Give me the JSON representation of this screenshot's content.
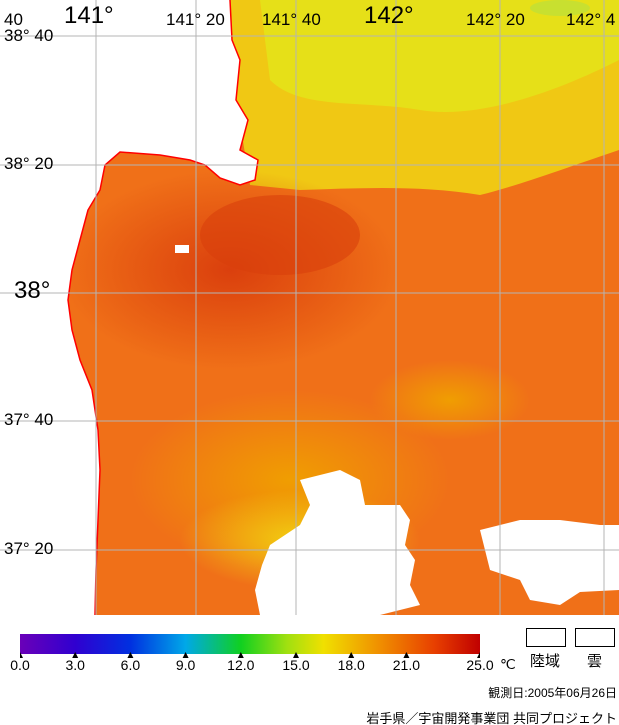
{
  "map": {
    "lon_labels": [
      {
        "text": "40",
        "major": false
      },
      {
        "text": "141°",
        "major": true
      },
      {
        "text": "141° 20",
        "major": false
      },
      {
        "text": "141° 40",
        "major": false
      },
      {
        "text": "142°",
        "major": true
      },
      {
        "text": "142° 20",
        "major": false
      },
      {
        "text": "142° 4",
        "major": false
      }
    ],
    "lat_labels": [
      {
        "text": "38° 40",
        "major": false
      },
      {
        "text": "38° 20",
        "major": false
      },
      {
        "text": "38°",
        "major": true
      },
      {
        "text": "37° 40",
        "major": false
      },
      {
        "text": "37° 20",
        "major": false
      }
    ],
    "colors": {
      "coastline": "#ff0000",
      "land_cloud": "#ffffff",
      "grid": "#b4b4b4"
    }
  },
  "colorbar": {
    "ticks": [
      "0.0",
      "3.0",
      "6.0",
      "9.0",
      "12.0",
      "15.0",
      "18.0",
      "21.0",
      "25.0"
    ],
    "unit": "℃",
    "min": 0,
    "max": 25
  },
  "legend": {
    "land_label": "陸域",
    "cloud_label": "雲"
  },
  "footer": {
    "obs_date": "観測日:2005年06月26日",
    "credit": "岩手県／宇宙開発事業団 共同プロジェクト"
  }
}
